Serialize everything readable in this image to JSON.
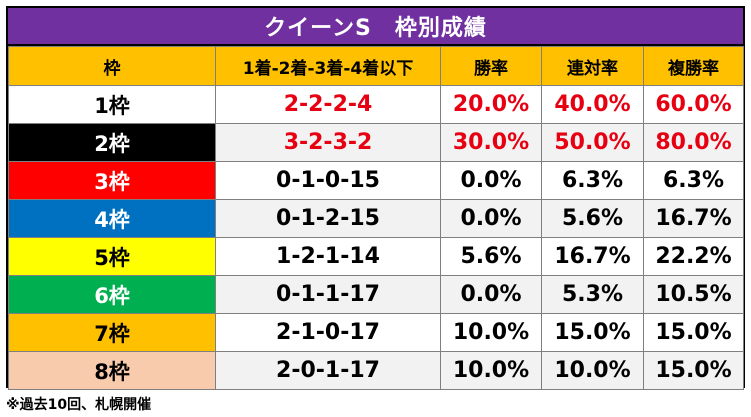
{
  "title": "クイーンS　枠別成績",
  "headers": [
    "枠",
    "1着-2着-3着-4着以下",
    "勝率",
    "連対率",
    "複勝率"
  ],
  "colors": {
    "title_bg": "#7030a0",
    "header_bg": "#ffc000",
    "highlight_text": "#e60012",
    "alt_row_bg": "#f2f2f2"
  },
  "rows": [
    {
      "waku": "1枠",
      "record": "2-2-2-4",
      "win": "20.0%",
      "place2": "40.0%",
      "place3": "60.0%",
      "waku_bg": "#ffffff",
      "waku_fg": "#000000",
      "row_bg": "#ffffff",
      "highlight": true
    },
    {
      "waku": "2枠",
      "record": "3-2-3-2",
      "win": "30.0%",
      "place2": "50.0%",
      "place3": "80.0%",
      "waku_bg": "#000000",
      "waku_fg": "#ffffff",
      "row_bg": "#f2f2f2",
      "highlight": true
    },
    {
      "waku": "3枠",
      "record": "0-1-0-15",
      "win": "0.0%",
      "place2": "6.3%",
      "place3": "6.3%",
      "waku_bg": "#ff0000",
      "waku_fg": "#ffffff",
      "row_bg": "#ffffff",
      "highlight": false
    },
    {
      "waku": "4枠",
      "record": "0-1-2-15",
      "win": "0.0%",
      "place2": "5.6%",
      "place3": "16.7%",
      "waku_bg": "#0070c0",
      "waku_fg": "#ffffff",
      "row_bg": "#f2f2f2",
      "highlight": false
    },
    {
      "waku": "5枠",
      "record": "1-2-1-14",
      "win": "5.6%",
      "place2": "16.7%",
      "place3": "22.2%",
      "waku_bg": "#ffff00",
      "waku_fg": "#000000",
      "row_bg": "#ffffff",
      "highlight": false
    },
    {
      "waku": "6枠",
      "record": "0-1-1-17",
      "win": "0.0%",
      "place2": "5.3%",
      "place3": "10.5%",
      "waku_bg": "#00b050",
      "waku_fg": "#ffffff",
      "row_bg": "#f2f2f2",
      "highlight": false
    },
    {
      "waku": "7枠",
      "record": "2-1-0-17",
      "win": "10.0%",
      "place2": "15.0%",
      "place3": "15.0%",
      "waku_bg": "#ffc000",
      "waku_fg": "#000000",
      "row_bg": "#ffffff",
      "highlight": false
    },
    {
      "waku": "8枠",
      "record": "2-0-1-17",
      "win": "10.0%",
      "place2": "10.0%",
      "place3": "15.0%",
      "waku_bg": "#f8cbad",
      "waku_fg": "#000000",
      "row_bg": "#f2f2f2",
      "highlight": false
    }
  ],
  "footnote": "※過去10回、札幌開催"
}
